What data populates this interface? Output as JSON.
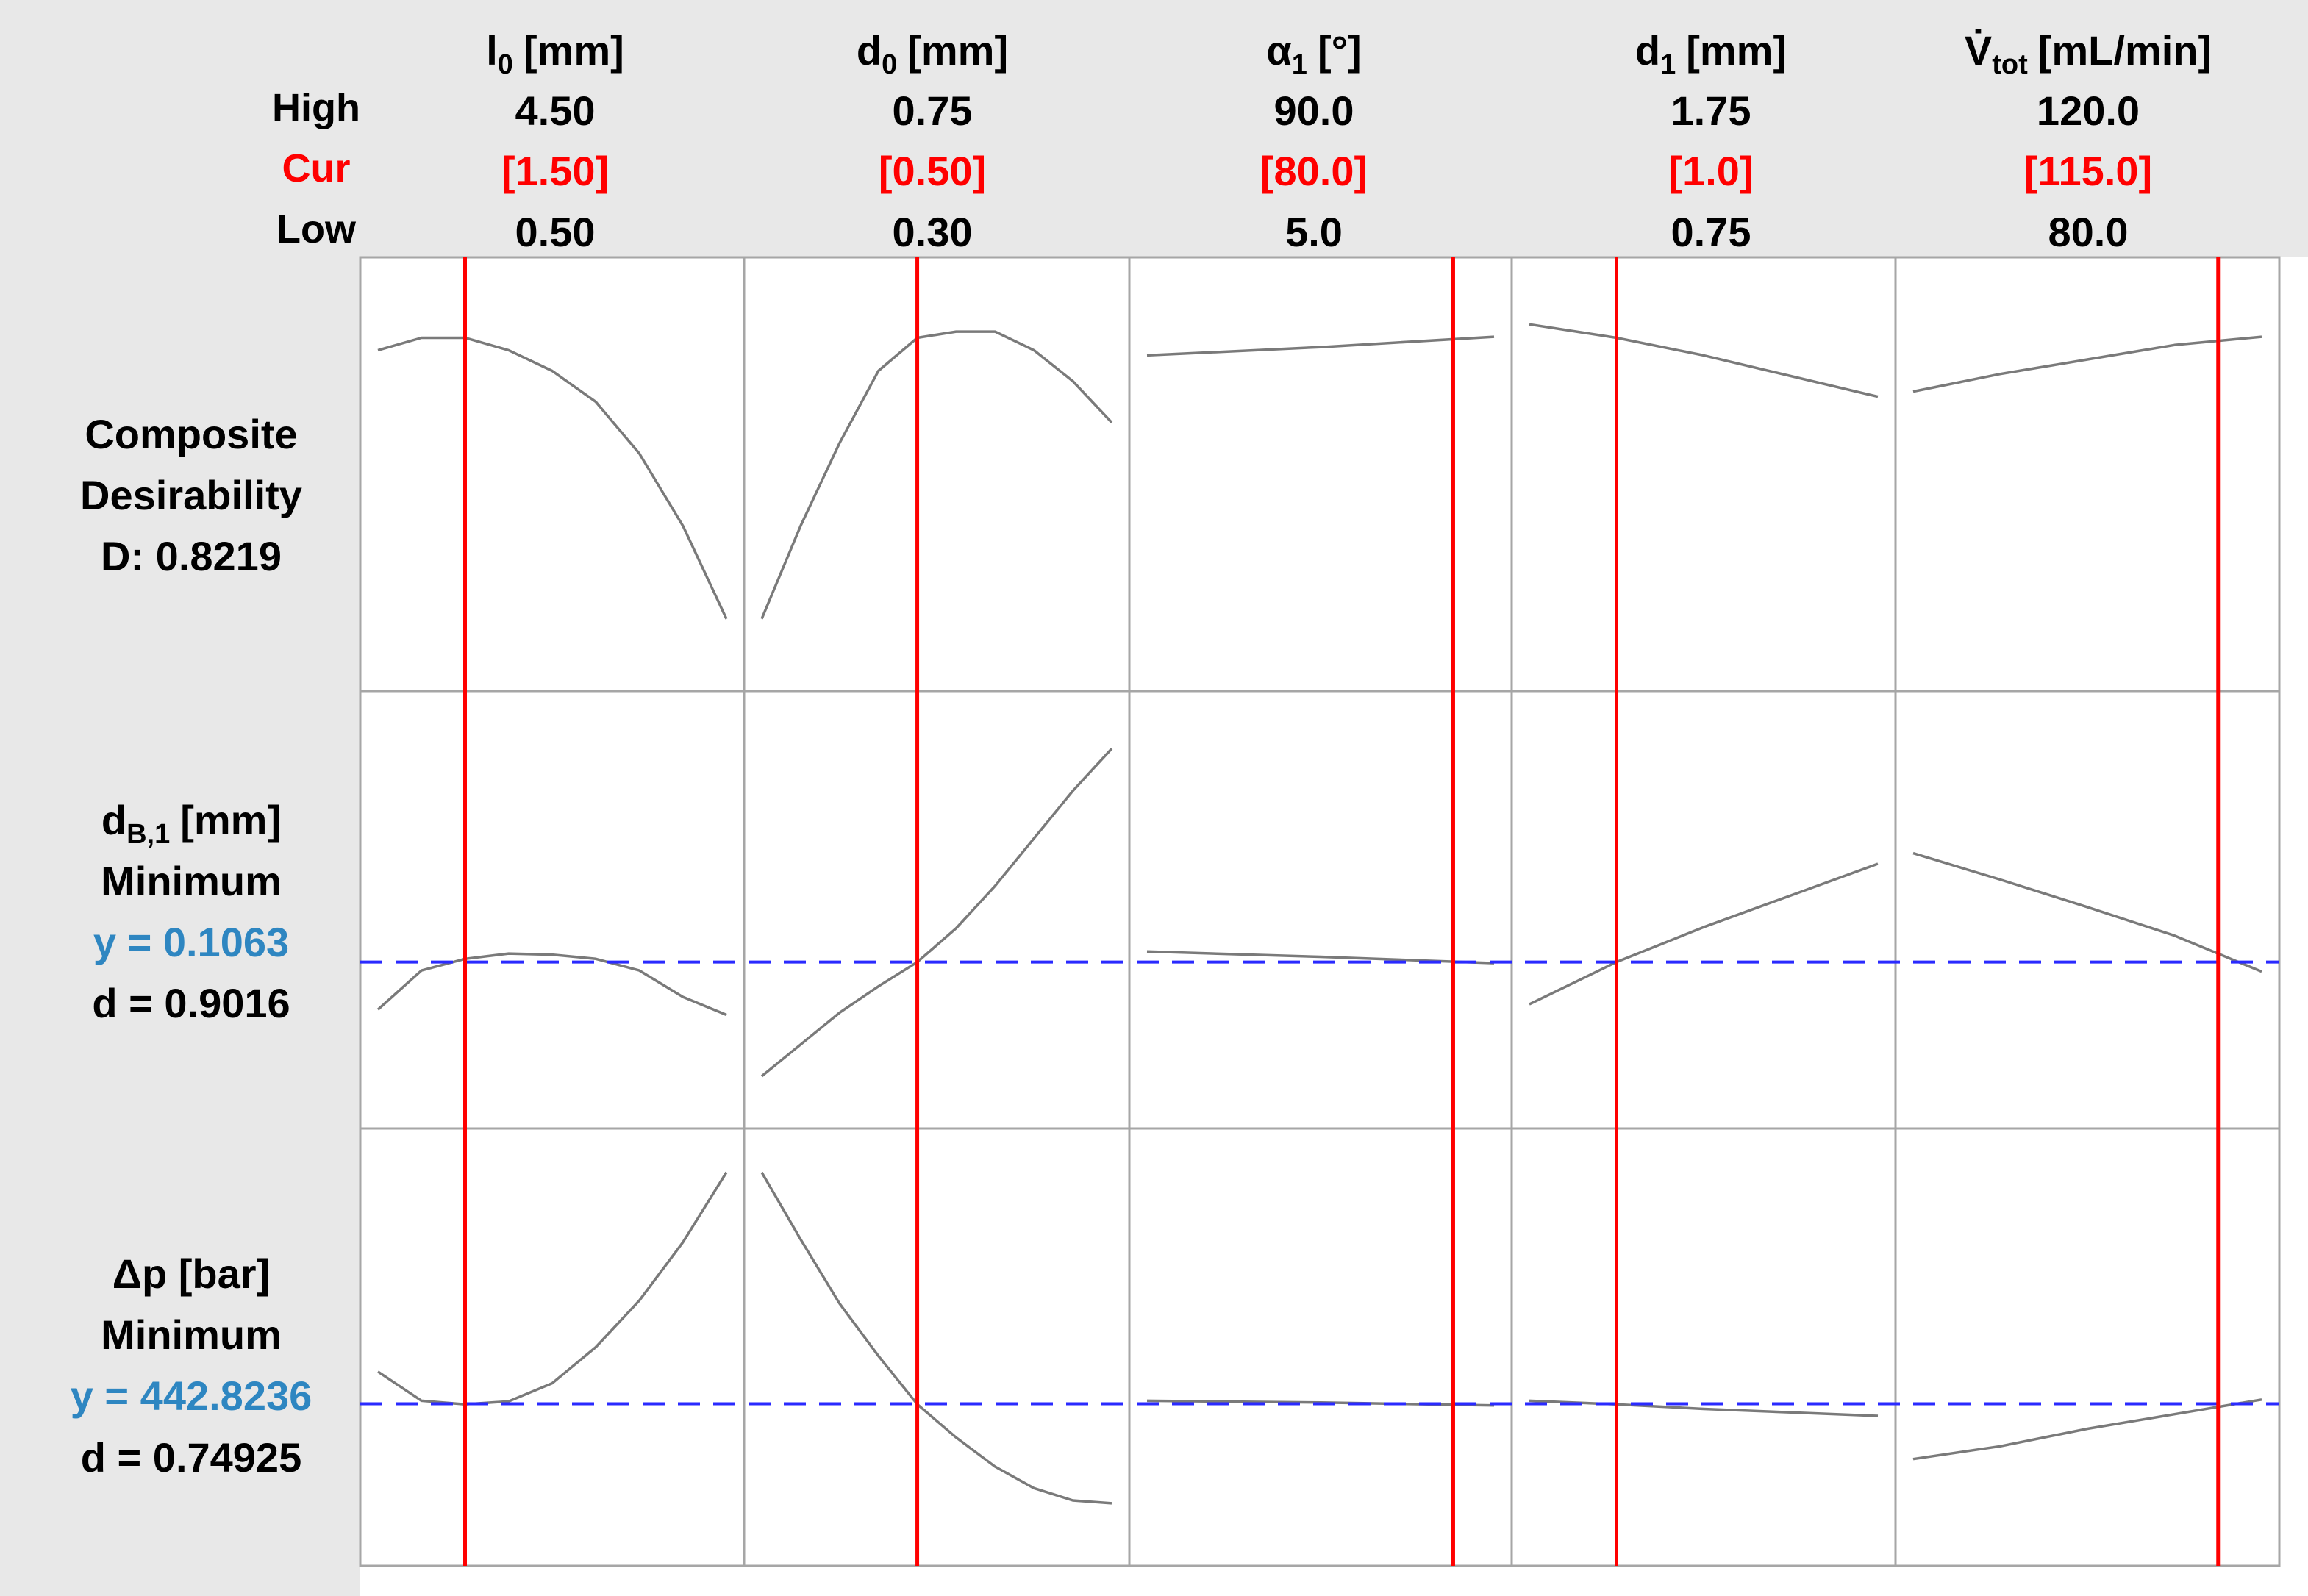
{
  "header": {
    "row_labels": {
      "high": "High",
      "cur": "Cur",
      "low": "Low"
    },
    "factors": [
      {
        "sym": "l",
        "sub": "0",
        "unit": "[mm]",
        "high": "4.50",
        "cur": "[1.50]",
        "low": "0.50"
      },
      {
        "sym": "d",
        "sub": "0",
        "unit": "[mm]",
        "high": "0.75",
        "cur": "[0.50]",
        "low": "0.30"
      },
      {
        "sym": "α",
        "sub": "1",
        "unit": "[°]",
        "high": "90.0",
        "cur": "[80.0]",
        "low": "5.0"
      },
      {
        "sym": "d",
        "sub": "1",
        "unit": "[mm]",
        "high": "1.75",
        "cur": "[1.0]",
        "low": "0.75"
      },
      {
        "sym": "V̇",
        "sub": "tot",
        "unit": "[mL/min]",
        "high": "120.0",
        "cur": "[115.0]",
        "low": "80.0"
      }
    ]
  },
  "rows": [
    {
      "lines": [
        "Composite",
        "Desirability",
        "D: 0.8219"
      ]
    },
    {
      "lines": [
        "d",
        "Minimum",
        "y = 0.1063",
        "d = 0.9016"
      ],
      "sym_sub": "B,1",
      "sym_unit": "[mm]"
    },
    {
      "lines": [
        "Δp [bar]",
        "Minimum",
        "y = 442.8236",
        "d = 0.74925"
      ]
    }
  ],
  "colors": {
    "background_header": "#e8e8e8",
    "current_setting": "#ff0000",
    "curve": "#7a7a7a",
    "y_value_text": "#2e86c1",
    "dashed_line": "#2a2aff",
    "grid": "#a6a6a6"
  },
  "chart_data": {
    "type": "line",
    "factor_ranges": [
      [
        0.5,
        4.5
      ],
      [
        0.3,
        0.75
      ],
      [
        5.0,
        90.0
      ],
      [
        0.75,
        1.75
      ],
      [
        80.0,
        120.0
      ]
    ],
    "current_settings": [
      1.5,
      0.5,
      80.0,
      1.0,
      115.0
    ],
    "responses": [
      {
        "name": "Composite Desirability",
        "value": 0.8219,
        "curves": [
          [
            [
              0.5,
              0.81
            ],
            [
              1.0,
              0.822
            ],
            [
              1.5,
              0.822
            ],
            [
              2.0,
              0.81
            ],
            [
              2.5,
              0.79
            ],
            [
              3.0,
              0.76
            ],
            [
              3.5,
              0.71
            ],
            [
              4.0,
              0.64
            ],
            [
              4.5,
              0.55
            ]
          ],
          [
            [
              0.3,
              0.55
            ],
            [
              0.35,
              0.64
            ],
            [
              0.4,
              0.72
            ],
            [
              0.45,
              0.79
            ],
            [
              0.5,
              0.822
            ],
            [
              0.55,
              0.828
            ],
            [
              0.6,
              0.828
            ],
            [
              0.65,
              0.81
            ],
            [
              0.7,
              0.78
            ],
            [
              0.75,
              0.74
            ]
          ],
          [
            [
              5.0,
              0.805
            ],
            [
              47.5,
              0.813
            ],
            [
              90.0,
              0.823
            ]
          ],
          [
            [
              0.75,
              0.835
            ],
            [
              1.0,
              0.822
            ],
            [
              1.25,
              0.805
            ],
            [
              1.5,
              0.785
            ],
            [
              1.75,
              0.765
            ]
          ],
          [
            [
              80.0,
              0.77
            ],
            [
              90.0,
              0.787
            ],
            [
              100.0,
              0.801
            ],
            [
              110.0,
              0.815
            ],
            [
              120.0,
              0.823
            ]
          ]
        ]
      },
      {
        "name": "dB,1 [mm] Minimum",
        "y": 0.1063,
        "d": 0.9016,
        "curves": [
          [
            [
              0.5,
              0.1018
            ],
            [
              1.0,
              0.1055
            ],
            [
              1.5,
              0.1066
            ],
            [
              2.0,
              0.1071
            ],
            [
              2.5,
              0.107
            ],
            [
              3.0,
              0.1066
            ],
            [
              3.5,
              0.1055
            ],
            [
              4.0,
              0.103
            ],
            [
              4.5,
              0.1013
            ]
          ],
          [
            [
              0.3,
              0.0955
            ],
            [
              0.35,
              0.0985
            ],
            [
              0.4,
              0.1015
            ],
            [
              0.45,
              0.104
            ],
            [
              0.5,
              0.1063
            ],
            [
              0.55,
              0.1095
            ],
            [
              0.6,
              0.1135
            ],
            [
              0.65,
              0.118
            ],
            [
              0.7,
              0.1225
            ],
            [
              0.75,
              0.1265
            ]
          ],
          [
            [
              5.0,
              0.1073
            ],
            [
              47.5,
              0.1068
            ],
            [
              90.0,
              0.1062
            ]
          ],
          [
            [
              0.75,
              0.1023
            ],
            [
              1.0,
              0.1063
            ],
            [
              1.25,
              0.1096
            ],
            [
              1.5,
              0.1126
            ],
            [
              1.75,
              0.1156
            ]
          ],
          [
            [
              80.0,
              0.1166
            ],
            [
              90.0,
              0.1141
            ],
            [
              100.0,
              0.1115
            ],
            [
              110.0,
              0.1088
            ],
            [
              120.0,
              0.1054
            ]
          ]
        ]
      },
      {
        "name": "Δp [bar] Minimum",
        "y": 442.8236,
        "d": 0.74925,
        "curves": [
          [
            [
              0.5,
              498
            ],
            [
              1.0,
              448
            ],
            [
              1.5,
              442
            ],
            [
              2.0,
              447
            ],
            [
              2.5,
              478
            ],
            [
              3.0,
              540
            ],
            [
              3.5,
              620
            ],
            [
              4.0,
              720
            ],
            [
              4.5,
              840
            ]
          ],
          [
            [
              0.3,
              840
            ],
            [
              0.35,
              725
            ],
            [
              0.4,
              615
            ],
            [
              0.45,
              525
            ],
            [
              0.5,
              442
            ],
            [
              0.55,
              385
            ],
            [
              0.6,
              335
            ],
            [
              0.65,
              298
            ],
            [
              0.7,
              277
            ],
            [
              0.75,
              272
            ]
          ],
          [
            [
              5.0,
              448
            ],
            [
              47.5,
              445
            ],
            [
              90.0,
              440
            ]
          ],
          [
            [
              0.75,
              448
            ],
            [
              1.0,
              442
            ],
            [
              1.25,
              434
            ],
            [
              1.5,
              428
            ],
            [
              1.75,
              422
            ]
          ],
          [
            [
              80.0,
              348
            ],
            [
              90.0,
              370
            ],
            [
              100.0,
              400
            ],
            [
              110.0,
              425
            ],
            [
              120.0,
              450
            ]
          ]
        ]
      }
    ]
  }
}
